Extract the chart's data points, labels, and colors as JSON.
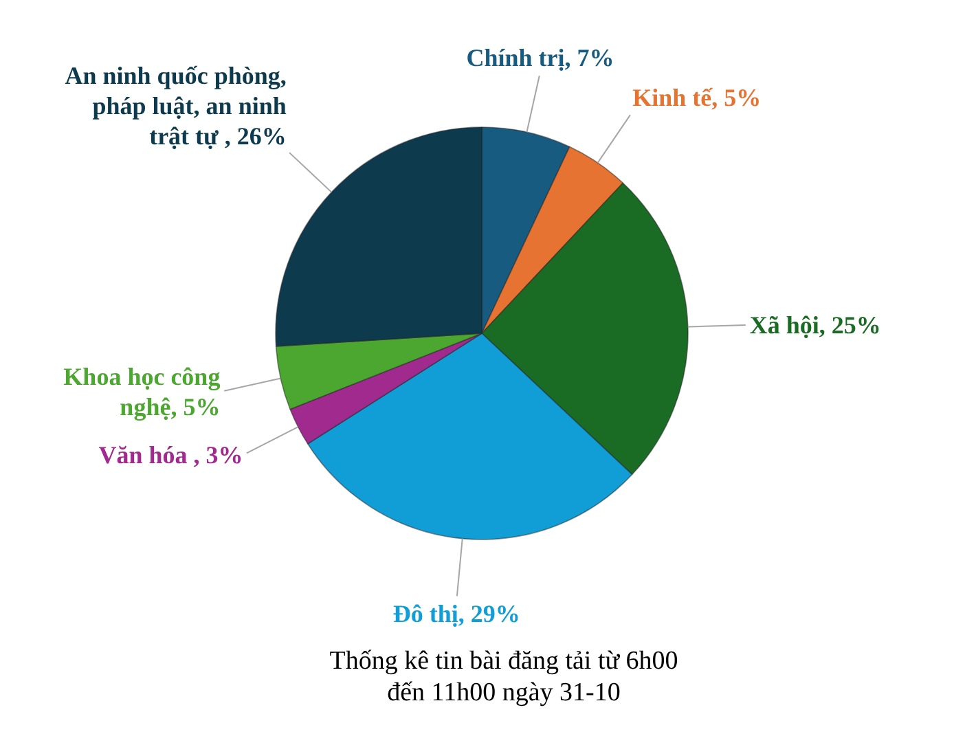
{
  "chart_data": {
    "type": "pie",
    "title": "Thống kê tin bài đăng tải từ 6h00 đến 11h00 ngày 31-10",
    "categories": [
      "Chính trị",
      "Kinh tế",
      "Xã hội",
      "Đô thị",
      "Văn hóa ",
      "Khoa học công nghệ",
      "An ninh quốc phòng, pháp luật, an ninh trật tự "
    ],
    "values": [
      7,
      5,
      25,
      29,
      3,
      5,
      26
    ],
    "colors": [
      "#175c80",
      "#e67332",
      "#1a6b24",
      "#119dd6",
      "#a02a8e",
      "#4ba72f",
      "#0e3a4e"
    ],
    "value_labels": [
      "7%",
      "5%",
      "25%",
      "29%",
      "3%",
      "5%",
      "26%"
    ]
  }
}
